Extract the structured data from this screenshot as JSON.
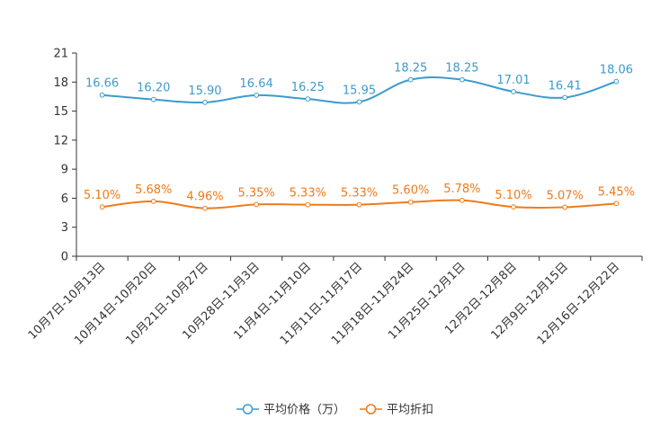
{
  "chart_data": {
    "type": "line",
    "title": "",
    "xlabel": "",
    "ylabel": "",
    "ylim": [
      0,
      21
    ],
    "yticks": [
      0,
      3,
      6,
      9,
      12,
      15,
      18,
      21
    ],
    "grid": false,
    "legend_position": "bottom-center",
    "categories": [
      "10月7日-10月13日",
      "10月14日-10月20日",
      "10月21日-10月27日",
      "10月28日-11月3日",
      "11月4日-11月10日",
      "11月11日-11月17日",
      "11月18日-11月24日",
      "11月25日-12月1日",
      "12月2日-12月8日",
      "12月9日-12月15日",
      "12月16日-12月22日"
    ],
    "series": [
      {
        "name": "平均价格（万）",
        "color": "#3d9bcc",
        "values": [
          16.66,
          16.2,
          15.9,
          16.64,
          16.25,
          15.95,
          18.25,
          18.25,
          17.01,
          16.41,
          18.06
        ],
        "labels": [
          "16.66",
          "16.20",
          "15.90",
          "16.64",
          "16.25",
          "15.95",
          "18.25",
          "18.25",
          "17.01",
          "16.41",
          "18.06"
        ]
      },
      {
        "name": "平均折扣",
        "color": "#f07a18",
        "values": [
          5.1,
          5.68,
          4.96,
          5.35,
          5.33,
          5.33,
          5.6,
          5.78,
          5.1,
          5.07,
          5.45
        ],
        "labels": [
          "5.10%",
          "5.68%",
          "4.96%",
          "5.35%",
          "5.33%",
          "5.33%",
          "5.60%",
          "5.78%",
          "5.10%",
          "5.07%",
          "5.45%"
        ]
      }
    ]
  }
}
